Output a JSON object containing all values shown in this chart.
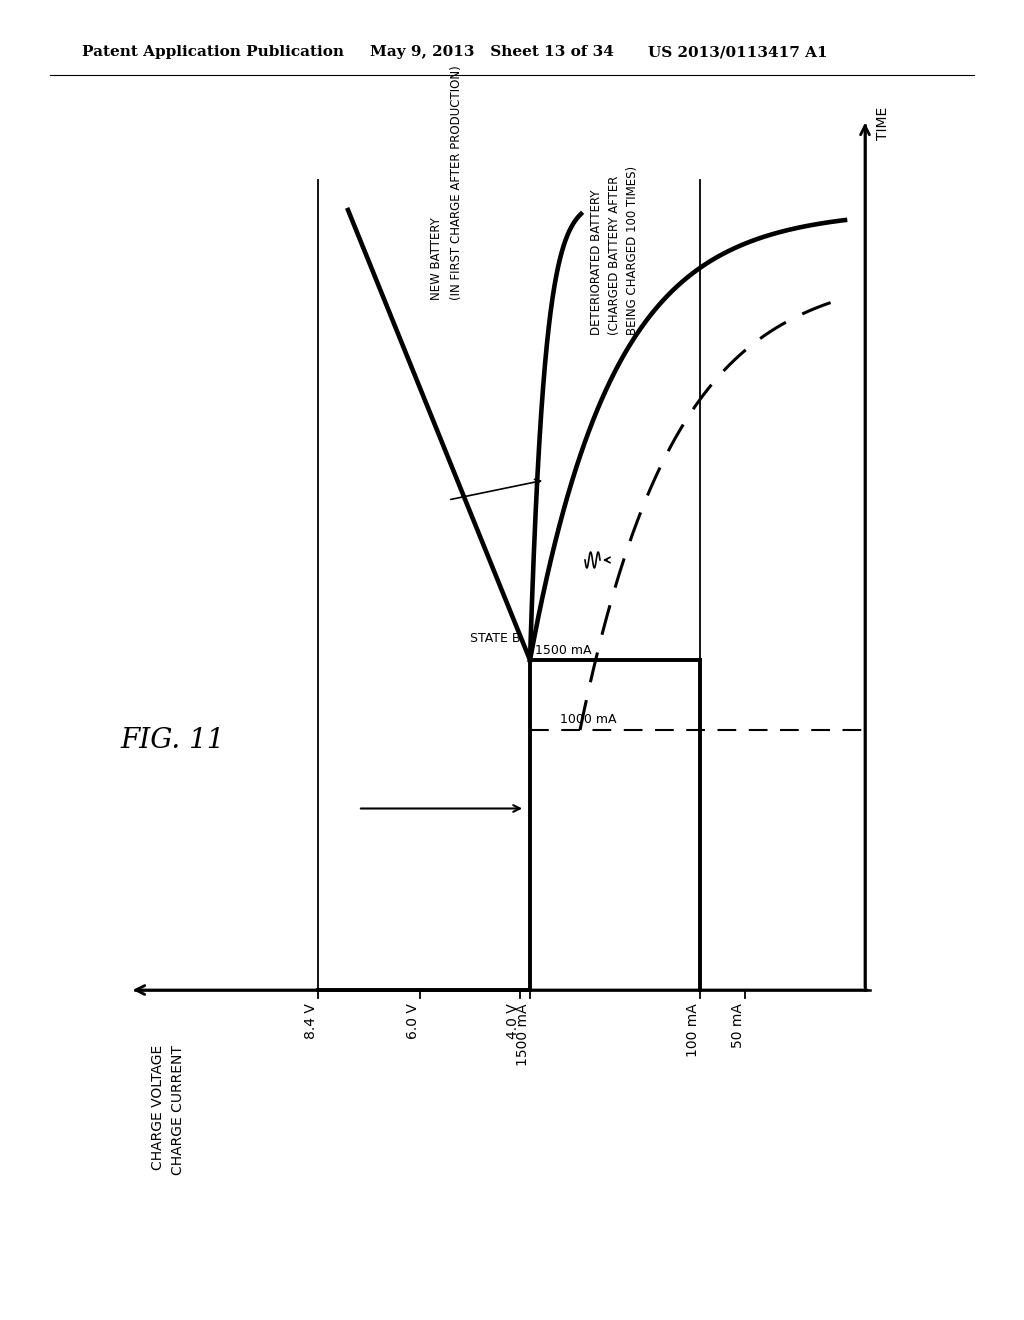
{
  "header_left": "Patent Application Publication",
  "header_mid": "May 9, 2013   Sheet 13 of 34",
  "header_right": "US 2013/0113417 A1",
  "fig_label": "FIG. 11",
  "y_axis_label_line1": "CHARGE VOLTAGE",
  "y_axis_label_line2": "CHARGE CURRENT",
  "x_axis_label": "TIME",
  "tick_8v": "8.4 V",
  "tick_6v": "6.0 V",
  "tick_4v": "4.0 V",
  "tick_1500": "1500 mA",
  "tick_100": "100 mA",
  "tick_50": "50 mA",
  "label_state_b": "STATE B",
  "label_1500": "1500 mA",
  "label_1000": "1000 mA",
  "label_new_battery_l1": "NEW BATTERY",
  "label_new_battery_l2": "(IN FIRST CHARGE AFTER PRODUCTION)",
  "label_det_l1": "DETERIORATED BATTERY",
  "label_det_l2": "(CHARGED BATTERY AFTER",
  "label_det_l3": "BEING CHARGED 100 TIMES)",
  "bg": "#ffffff",
  "lc": "#000000",
  "lw_thick": 2.8,
  "lw_thin": 1.3,
  "lw_dash": 2.2
}
